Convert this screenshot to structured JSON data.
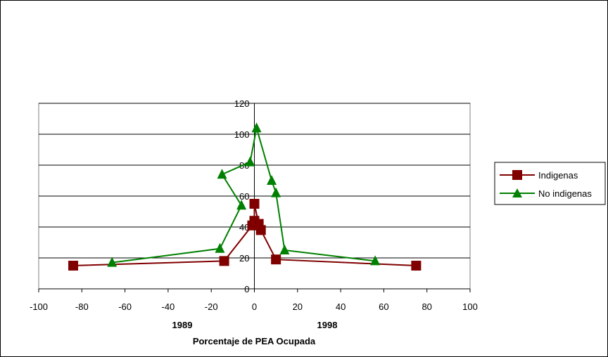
{
  "chart_data": {
    "type": "scatter",
    "xlim": [
      -100,
      100
    ],
    "ylim": [
      0,
      120
    ],
    "x_ticks": [
      -100,
      -80,
      -60,
      -40,
      -20,
      0,
      20,
      40,
      60,
      80,
      100
    ],
    "y_ticks": [
      0,
      20,
      40,
      60,
      80,
      100,
      120
    ],
    "grid": "horizontal",
    "legend_position": "right",
    "group_labels": [
      "1989",
      "1998"
    ],
    "xlabel": "Porcentaje de PEA Ocupada",
    "series": [
      {
        "name": "Indigenas",
        "color": "#800000",
        "marker": "square",
        "points": [
          [
            -84,
            15
          ],
          [
            -14,
            18
          ],
          [
            -1,
            41
          ],
          [
            0,
            44
          ],
          [
            0,
            55
          ],
          [
            2,
            42
          ],
          [
            3,
            38
          ],
          [
            10,
            19
          ],
          [
            75,
            15
          ]
        ]
      },
      {
        "name": "No indigenas",
        "color": "#008000",
        "marker": "triangle",
        "points": [
          [
            -66,
            17
          ],
          [
            -16,
            26
          ],
          [
            -6,
            54
          ],
          [
            -15,
            74
          ],
          [
            -2,
            82
          ],
          [
            1,
            104
          ],
          [
            8,
            70
          ],
          [
            10,
            62
          ],
          [
            14,
            25
          ],
          [
            56,
            18
          ]
        ]
      }
    ]
  }
}
